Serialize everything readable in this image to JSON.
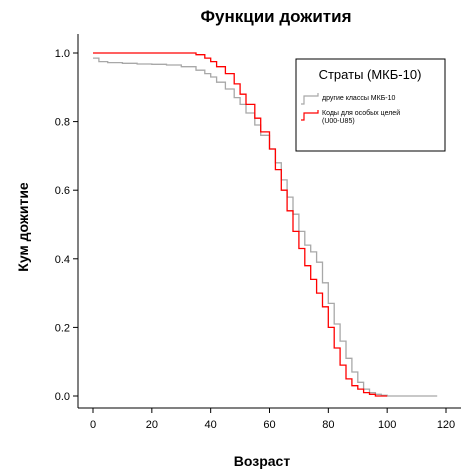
{
  "chart_data": {
    "type": "line",
    "title": "Функции дожития",
    "xlabel": "Возраст",
    "ylabel": "Кум дожитие",
    "xlim": [
      0,
      120
    ],
    "ylim": [
      0.0,
      1.0
    ],
    "x_ticks": [
      "0",
      "20",
      "40",
      "60",
      "80",
      "100",
      "120"
    ],
    "y_ticks": [
      "0.0",
      "0.2",
      "0.4",
      "0.6",
      "0.8",
      "1.0"
    ],
    "grid": false,
    "step": true,
    "legend": {
      "title": "Страты (МКБ-10)",
      "placement": "top-right",
      "entries": [
        "другие классы МКБ-10",
        "Коды для особых целей",
        "(U00-U85)"
      ]
    },
    "series": [
      {
        "name": "другие классы МКБ-10",
        "color": "#a8a8a8",
        "x": [
          0,
          2,
          5,
          10,
          15,
          20,
          25,
          30,
          35,
          38,
          40,
          42,
          45,
          48,
          50,
          52,
          55,
          57,
          60,
          62,
          64,
          66,
          68,
          70,
          72,
          74,
          76,
          78,
          80,
          82,
          84,
          86,
          88,
          90,
          92,
          94,
          96,
          98,
          100,
          105,
          110,
          117
        ],
        "y": [
          0.985,
          0.975,
          0.972,
          0.97,
          0.968,
          0.967,
          0.965,
          0.96,
          0.95,
          0.94,
          0.93,
          0.915,
          0.895,
          0.87,
          0.85,
          0.825,
          0.79,
          0.76,
          0.72,
          0.68,
          0.63,
          0.58,
          0.53,
          0.48,
          0.44,
          0.42,
          0.39,
          0.33,
          0.27,
          0.21,
          0.16,
          0.11,
          0.07,
          0.04,
          0.02,
          0.01,
          0.005,
          0.002,
          0.0,
          0.0,
          0.0,
          0.0
        ]
      },
      {
        "name": "Коды для особых целей (U00-U85)",
        "color": "#ff0000",
        "x": [
          0,
          5,
          10,
          20,
          30,
          35,
          38,
          40,
          42,
          45,
          48,
          50,
          52,
          55,
          57,
          60,
          62,
          64,
          66,
          68,
          70,
          72,
          74,
          76,
          78,
          80,
          82,
          84,
          86,
          88,
          90,
          92,
          94,
          96,
          98,
          100
        ],
        "y": [
          1.0,
          1.0,
          1.0,
          1.0,
          1.0,
          0.995,
          0.985,
          0.975,
          0.96,
          0.94,
          0.91,
          0.88,
          0.85,
          0.81,
          0.77,
          0.72,
          0.66,
          0.6,
          0.54,
          0.48,
          0.43,
          0.38,
          0.34,
          0.3,
          0.26,
          0.2,
          0.14,
          0.09,
          0.05,
          0.03,
          0.02,
          0.01,
          0.005,
          0.0,
          0.0,
          0.0
        ]
      }
    ]
  }
}
